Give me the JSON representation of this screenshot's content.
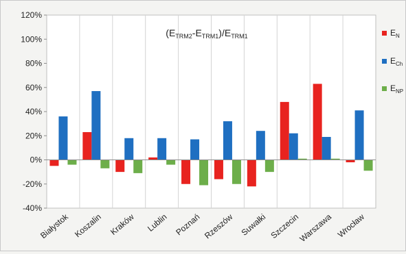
{
  "chart_data": {
    "type": "bar",
    "title": {
      "base": "(E",
      "s1": "TRM2",
      "mid": "-E",
      "s2": "TRM1",
      "end": ")/E",
      "s3": "TRM1"
    },
    "categories": [
      "Białystok",
      "Koszalin",
      "Kraków",
      "Lublin",
      "Poznań",
      "Rzeszów",
      "Suwałki",
      "Szczecin",
      "Warszawa",
      "Wrocław"
    ],
    "series": [
      {
        "name": "E",
        "sub": "N",
        "color": "#e8231f",
        "values": [
          -5,
          23,
          -10,
          2,
          -20,
          -16,
          -22,
          48,
          63,
          -2
        ]
      },
      {
        "name": "E",
        "sub": "Ch",
        "color": "#1f6fc1",
        "values": [
          36,
          57,
          18,
          18,
          17,
          32,
          24,
          22,
          19,
          41
        ]
      },
      {
        "name": "E",
        "sub": "NP",
        "color": "#6dae4a",
        "values": [
          -4,
          -7,
          -11,
          -4,
          -21,
          -20,
          -10,
          1,
          1,
          -9
        ]
      }
    ],
    "yticks": [
      "-40%",
      "-20%",
      "0%",
      "20%",
      "40%",
      "60%",
      "80%",
      "100%",
      "120%"
    ],
    "ylim": [
      -40,
      120
    ],
    "ytick_step": 20,
    "grid": "vertical-per-category",
    "legend": "right"
  }
}
